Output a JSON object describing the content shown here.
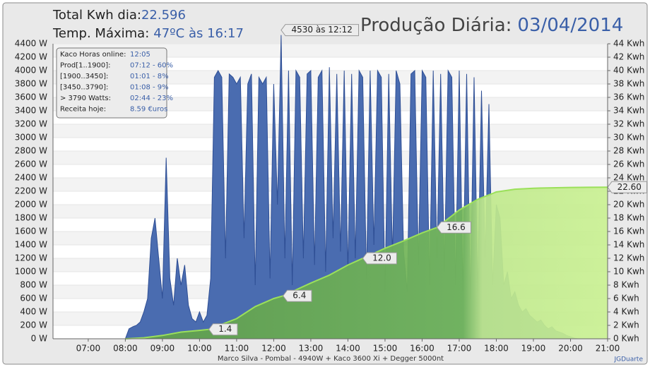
{
  "header": {
    "total_label": "Total Kwh dia:",
    "total_value": "22.596",
    "temp_label": "Temp. Máxima:",
    "temp_value": "47ºC às 16:17",
    "title": "Produção Diária:",
    "date": "03/04/2014"
  },
  "info_box": [
    {
      "label": "Kaco Horas online:",
      "value": "12:05"
    },
    {
      "label": "Prod[1..1900]:",
      "value": "07:12 - 60%"
    },
    {
      "label": "[1900..3450]:",
      "value": "01:01 - 8%"
    },
    {
      "label": "[3450..3790]:",
      "value": "01:08 - 9%"
    },
    {
      "label": "> 3790 Watts:",
      "value": "02:44 - 23%"
    },
    {
      "label": "Receita hoje:",
      "value": "8.59 €uros"
    }
  ],
  "footer": "Marco Silva - Pombal - 4940W + Kaco 3600 Xi + Degger 5000nt",
  "credit": "JGDuarte",
  "chart_data": {
    "type": "area",
    "xlim": [
      6.05,
      21
    ],
    "xticks": [
      {
        "value": 7,
        "label": "07:00"
      },
      {
        "value": 8,
        "label": "08:00"
      },
      {
        "value": 9,
        "label": "09:00"
      },
      {
        "value": 10,
        "label": "10:00"
      },
      {
        "value": 11,
        "label": "11:00"
      },
      {
        "value": 12,
        "label": "12:00"
      },
      {
        "value": 13,
        "label": "13:00"
      },
      {
        "value": 14,
        "label": "14:00"
      },
      {
        "value": 15,
        "label": "15:00"
      },
      {
        "value": 16,
        "label": "16:00"
      },
      {
        "value": 17,
        "label": "17:00"
      },
      {
        "value": 18,
        "label": "18:00"
      },
      {
        "value": 19,
        "label": "19:00"
      },
      {
        "value": 20,
        "label": "20:00"
      },
      {
        "value": 21,
        "label": "21:00"
      }
    ],
    "ylim": [
      0,
      4400
    ],
    "yticks": [
      {
        "value": 0,
        "label": "0 W"
      },
      {
        "value": 200,
        "label": "200 W"
      },
      {
        "value": 400,
        "label": "400 W"
      },
      {
        "value": 600,
        "label": "600 W"
      },
      {
        "value": 800,
        "label": "800 W"
      },
      {
        "value": 1000,
        "label": "1000 W"
      },
      {
        "value": 1200,
        "label": "1200 W"
      },
      {
        "value": 1400,
        "label": "1400 W"
      },
      {
        "value": 1600,
        "label": "1600 W"
      },
      {
        "value": 1800,
        "label": "1800 W"
      },
      {
        "value": 2000,
        "label": "2000 W"
      },
      {
        "value": 2200,
        "label": "2200 W"
      },
      {
        "value": 2400,
        "label": "2400 W"
      },
      {
        "value": 2600,
        "label": "2600 W"
      },
      {
        "value": 2800,
        "label": "2800 W"
      },
      {
        "value": 3000,
        "label": "3000 W"
      },
      {
        "value": 3200,
        "label": "3200 W"
      },
      {
        "value": 3400,
        "label": "3400 W"
      },
      {
        "value": 3600,
        "label": "3600 W"
      },
      {
        "value": 3800,
        "label": "3800 W"
      },
      {
        "value": 4000,
        "label": "4000 W"
      },
      {
        "value": 4200,
        "label": "4200 W"
      },
      {
        "value": 4400,
        "label": "4400 W"
      }
    ],
    "y2lim": [
      0,
      44
    ],
    "y2ticks": [
      {
        "value": 0,
        "label": "0 Kwh"
      },
      {
        "value": 2,
        "label": "2 Kwh"
      },
      {
        "value": 4,
        "label": "4 Kwh"
      },
      {
        "value": 6,
        "label": "6 Kwh"
      },
      {
        "value": 8,
        "label": "8 Kwh"
      },
      {
        "value": 10,
        "label": "10 Kwh"
      },
      {
        "value": 12,
        "label": "12 Kwh"
      },
      {
        "value": 14,
        "label": "14 Kwh"
      },
      {
        "value": 16,
        "label": "16 Kwh"
      },
      {
        "value": 18,
        "label": "18 Kwh"
      },
      {
        "value": 20,
        "label": "20 Kwh"
      },
      {
        "value": 22,
        "label": "22 Kwh"
      },
      {
        "value": 24,
        "label": "24 Kwh"
      },
      {
        "value": 26,
        "label": "26 Kwh"
      },
      {
        "value": 28,
        "label": "28 Kwh"
      },
      {
        "value": 30,
        "label": "30 Kwh"
      },
      {
        "value": 32,
        "label": "32 Kwh"
      },
      {
        "value": 34,
        "label": "34 Kwh"
      },
      {
        "value": 36,
        "label": "36 Kwh"
      },
      {
        "value": 38,
        "label": "38 Kwh"
      },
      {
        "value": 40,
        "label": "40 Kwh"
      },
      {
        "value": 42,
        "label": "42 Kwh"
      },
      {
        "value": 44,
        "label": "44 Kwh"
      }
    ],
    "grid": true,
    "series": [
      {
        "color": "#4a6cb0",
        "x": [
          8,
          8.1,
          8.2,
          8.3,
          8.4,
          8.5,
          8.6,
          8.7,
          8.8,
          8.9,
          9,
          9.1,
          9.2,
          9.3,
          9.4,
          9.5,
          9.6,
          9.7,
          9.8,
          9.9,
          10,
          10.1,
          10.2,
          10.3,
          10.4,
          10.5,
          10.6,
          10.7,
          10.8,
          10.9,
          11,
          11.1,
          11.2,
          11.3,
          11.4,
          11.5,
          11.6,
          11.7,
          11.8,
          11.9,
          12,
          12.1,
          12.2,
          12.3,
          12.4,
          12.5,
          12.6,
          12.7,
          12.8,
          12.9,
          13,
          13.1,
          13.2,
          13.3,
          13.4,
          13.5,
          13.6,
          13.7,
          13.8,
          13.9,
          14,
          14.1,
          14.2,
          14.3,
          14.4,
          14.5,
          14.6,
          14.7,
          14.8,
          14.9,
          15,
          15.1,
          15.2,
          15.3,
          15.4,
          15.5,
          15.6,
          15.7,
          15.8,
          15.9,
          16,
          16.1,
          16.2,
          16.3,
          16.4,
          16.5,
          16.6,
          16.7,
          16.8,
          16.9,
          17,
          17.1,
          17.2,
          17.3,
          17.4,
          17.5,
          17.6,
          17.7,
          17.8,
          17.9,
          18,
          18.1,
          18.2,
          18.3,
          18.4,
          18.5,
          18.6,
          18.7,
          18.8,
          18.9,
          19,
          19.1,
          19.2,
          19.3,
          19.4,
          19.5,
          19.6,
          19.7,
          19.8,
          19.9,
          20,
          20.1,
          20.2
        ],
        "values": [
          0,
          150,
          180,
          200,
          250,
          400,
          600,
          1500,
          1800,
          1200,
          600,
          2700,
          900,
          500,
          1200,
          800,
          1100,
          500,
          300,
          250,
          400,
          250,
          350,
          900,
          3900,
          4000,
          3900,
          1200,
          3950,
          3900,
          3800,
          3900,
          1500,
          3800,
          3950,
          800,
          3900,
          3800,
          3900,
          900,
          3800,
          2000,
          4530,
          1200,
          4000,
          800,
          4000,
          3900,
          1200,
          3950,
          4000,
          1100,
          3900,
          4000,
          1000,
          4050,
          1500,
          3950,
          1300,
          4000,
          1000,
          3950,
          1200,
          4000,
          3900,
          900,
          4000,
          1400,
          4000,
          3900,
          700,
          3950,
          1200,
          4000,
          3800,
          1300,
          700,
          3950,
          4000,
          1100,
          4000,
          3900,
          800,
          4000,
          1200,
          3950,
          1000,
          4000,
          3900,
          800,
          4000,
          700,
          3950,
          600,
          3900,
          700,
          3700,
          1200,
          3500,
          800,
          2000,
          1800,
          800,
          1000,
          600,
          700,
          500,
          400,
          450,
          350,
          300,
          250,
          280,
          200,
          150,
          180,
          120,
          100,
          80,
          50,
          30,
          10,
          0
        ]
      },
      {
        "color": "#6aaa50",
        "axis": "y2",
        "x": [
          8,
          8.5,
          9,
          9.5,
          10,
          10.25,
          11,
          11.5,
          12,
          12.25,
          13,
          13.5,
          14,
          14.4,
          15,
          15.5,
          16,
          16.4,
          17,
          17.5,
          18,
          18.5,
          19,
          19.5,
          20,
          20.5,
          21
        ],
        "values": [
          0,
          0.15,
          0.5,
          1.0,
          1.25,
          1.4,
          3.0,
          4.8,
          6.0,
          6.4,
          8.3,
          9.5,
          11.0,
          12.0,
          13.5,
          14.6,
          15.8,
          16.6,
          19.2,
          20.8,
          21.9,
          22.3,
          22.45,
          22.52,
          22.57,
          22.59,
          22.6
        ],
        "value_labels": [
          null,
          null,
          null,
          null,
          null,
          "1.4",
          null,
          null,
          null,
          "6.4",
          null,
          null,
          null,
          "12.0",
          null,
          null,
          null,
          "16.6",
          null,
          null,
          null,
          null,
          null,
          null,
          null,
          null,
          "22.60"
        ]
      }
    ],
    "annotations": [
      {
        "text": "4530 às 12:12",
        "x": 12.2,
        "y": 4530
      }
    ]
  }
}
